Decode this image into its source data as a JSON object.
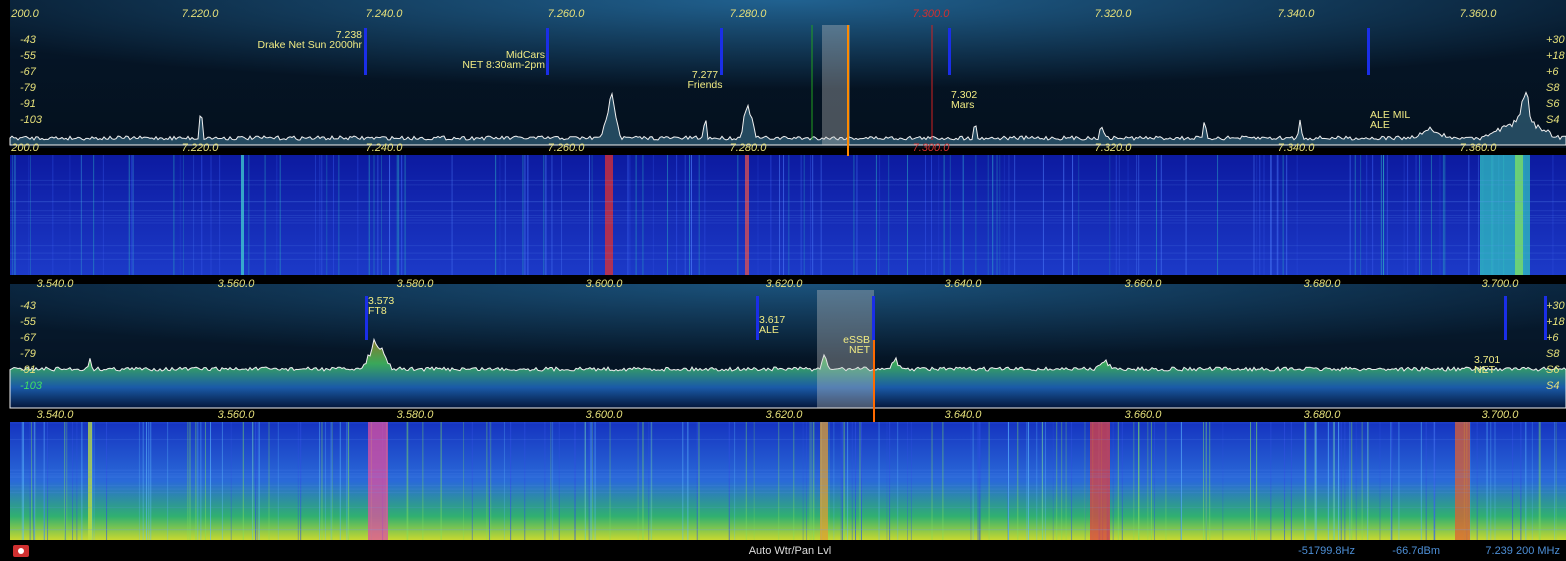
{
  "panels": [
    {
      "freq_labels": [
        "200.0",
        "7.220.0",
        "7.240.0",
        "7.260.0",
        "7.280.0",
        "7.300.0",
        "7.320.0",
        "7.340.0",
        "7.360.0"
      ],
      "dbm_labels": [
        "-43",
        "-55",
        "-67",
        "-79",
        "-91",
        "-103"
      ],
      "s_labels": [
        "+30",
        "+18",
        "+6",
        "S8",
        "S6",
        "S4"
      ],
      "spots": [
        {
          "lines": [
            "7.238",
            "Drake Net Sun 2000hr"
          ]
        },
        {
          "lines": [
            "MidCars",
            "NET 8:30am-2pm"
          ]
        },
        {
          "lines": [
            "7.277",
            "Friends"
          ]
        },
        {
          "lines": [
            "7.302",
            "Mars"
          ]
        },
        {
          "lines": [
            "ALE MIL",
            "ALE"
          ]
        }
      ]
    },
    {
      "freq_labels": [
        "3.540.0",
        "3.560.0",
        "3.580.0",
        "3.600.0",
        "3.620.0",
        "3.640.0",
        "3.660.0",
        "3.680.0",
        "3.700.0"
      ],
      "dbm_labels": [
        "-43",
        "-55",
        "-67",
        "-79",
        "-91",
        "-103"
      ],
      "s_labels": [
        "+30",
        "+18",
        "+6",
        "S8",
        "S6",
        "S4"
      ],
      "spots": [
        {
          "lines": [
            "3.573",
            "FT8"
          ]
        },
        {
          "lines": [
            "3.617",
            "ALE"
          ]
        },
        {
          "lines": [
            "eSSB",
            "NET"
          ]
        },
        {
          "lines": [
            "3.701",
            "NET"
          ]
        }
      ]
    }
  ],
  "status": {
    "mode": "Auto Wtr/Pan Lvl",
    "offset": "-51799.8Hz",
    "level": "-66.7dBm",
    "frequency": "7.239 200 MHz"
  }
}
